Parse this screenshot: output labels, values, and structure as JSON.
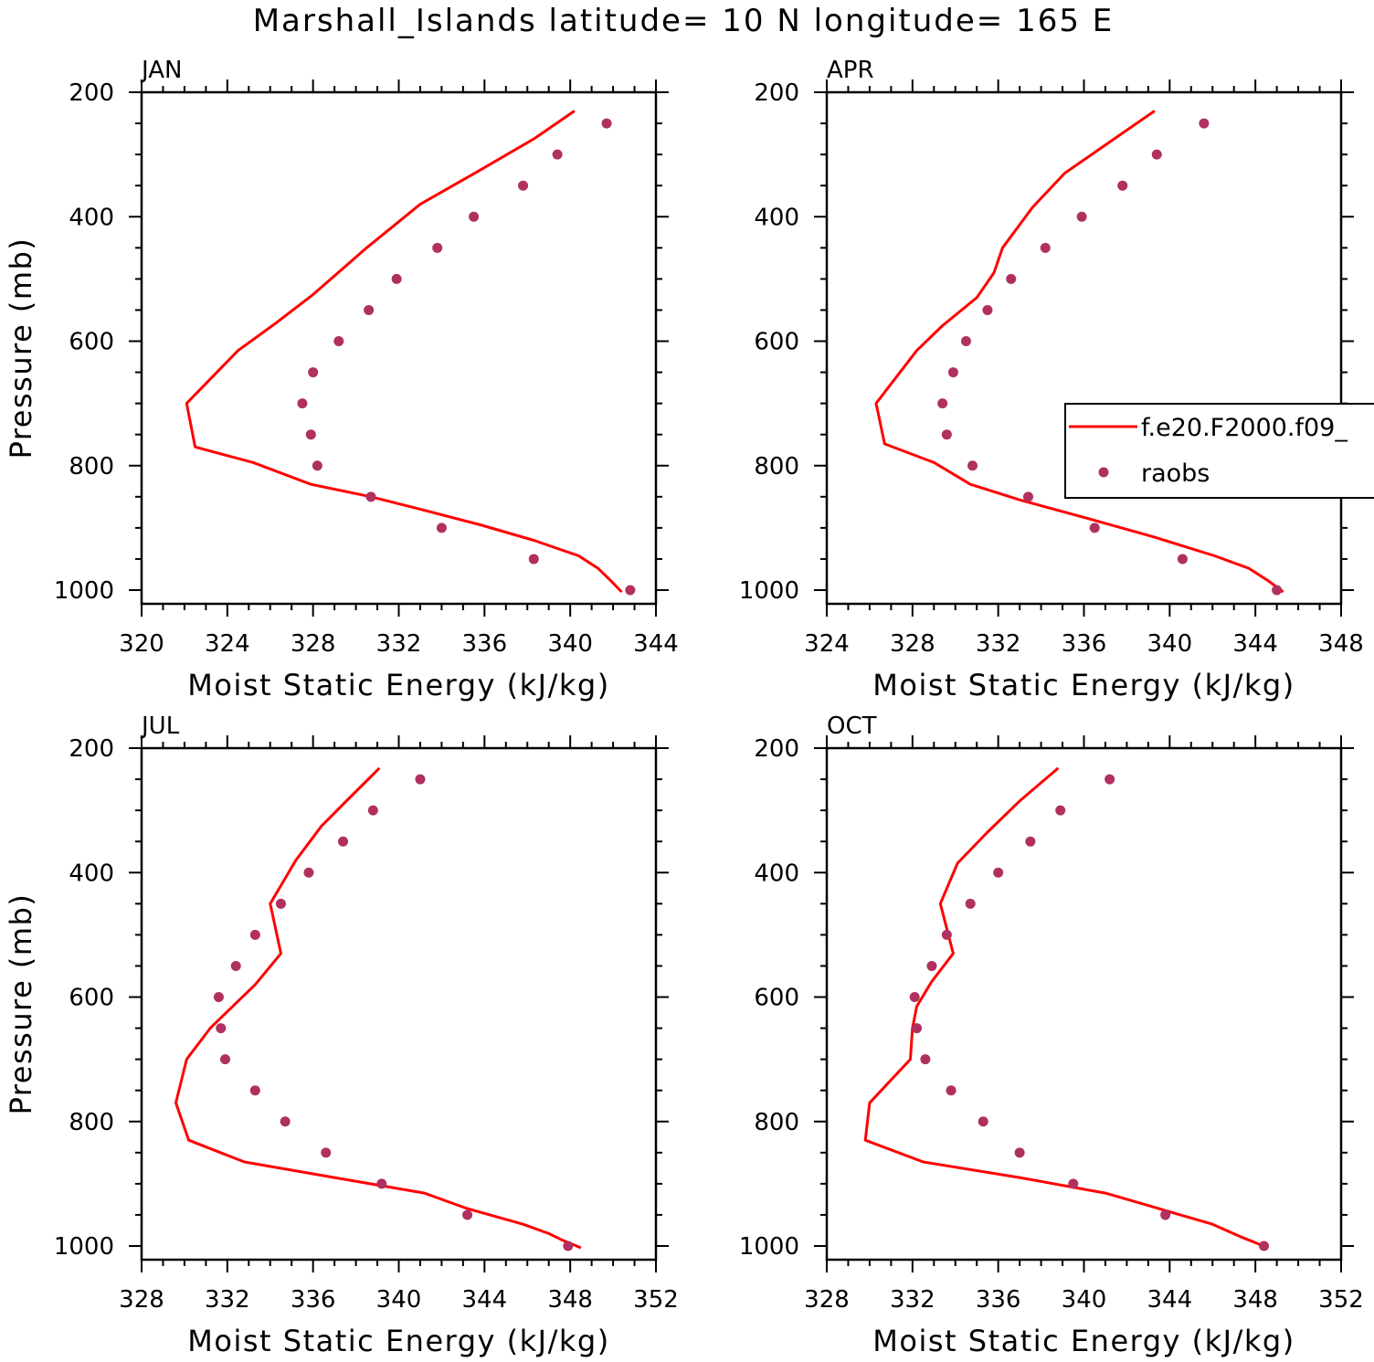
{
  "title": "Marshall_Islands  latitude= 10 N longitude= 165 E",
  "colors": {
    "model": "#ff0000",
    "obs": "#b03060"
  },
  "legend": {
    "model_label": "f.e20.F2000.f09_",
    "obs_label": "raobs"
  },
  "chart_data": [
    {
      "type": "line",
      "panel": "JAN",
      "xlabel": "Moist Static Energy (kJ/kg)",
      "ylabel": "Pressure (mb)",
      "xlim": [
        320,
        344
      ],
      "ylim": [
        1000,
        200
      ],
      "xticks": [
        320,
        324,
        328,
        332,
        336,
        340,
        344
      ],
      "yticks": [
        200,
        400,
        600,
        800,
        1000
      ],
      "series": [
        {
          "name": "f.e20.F2000.f09_",
          "type": "line",
          "x": [
            340.2,
            338.3,
            335.8,
            333.0,
            330.5,
            328.0,
            326.3,
            324.5,
            322.1,
            322.5,
            325.2,
            327.9,
            330.7,
            333.0,
            335.8,
            338.3,
            340.4,
            341.3,
            341.9,
            342.4
          ],
          "y": [
            230,
            275,
            325,
            380,
            450,
            525,
            570,
            615,
            700,
            770,
            795,
            830,
            850,
            870,
            895,
            920,
            945,
            965,
            985,
            1003
          ]
        },
        {
          "name": "raobs",
          "type": "scatter",
          "x": [
            341.7,
            339.4,
            337.8,
            335.5,
            333.8,
            331.9,
            330.6,
            329.2,
            328.0,
            327.5,
            327.9,
            328.2,
            330.7,
            334.0,
            338.3,
            342.8
          ],
          "y": [
            250,
            300,
            350,
            400,
            450,
            500,
            550,
            600,
            650,
            700,
            750,
            800,
            850,
            900,
            950,
            1000
          ]
        }
      ]
    },
    {
      "type": "line",
      "panel": "APR",
      "xlabel": "Moist Static Energy (kJ/kg)",
      "ylabel": "",
      "xlim": [
        324,
        348
      ],
      "ylim": [
        1000,
        200
      ],
      "xticks": [
        324,
        328,
        332,
        336,
        340,
        344,
        348
      ],
      "yticks": [
        200,
        400,
        600,
        800,
        1000
      ],
      "series": [
        {
          "name": "f.e20.F2000.f09_",
          "type": "line",
          "x": [
            339.3,
            337.2,
            335.1,
            333.6,
            332.2,
            331.8,
            331.0,
            329.4,
            328.2,
            326.3,
            326.7,
            329.0,
            330.7,
            333.0,
            336.2,
            339.3,
            342.1,
            343.7,
            344.6,
            345.3
          ],
          "y": [
            230,
            280,
            330,
            385,
            450,
            490,
            530,
            575,
            615,
            700,
            765,
            795,
            830,
            855,
            885,
            915,
            945,
            965,
            985,
            1003
          ]
        },
        {
          "name": "raobs",
          "type": "scatter",
          "x": [
            341.6,
            339.4,
            337.8,
            335.9,
            334.2,
            332.6,
            331.5,
            330.5,
            329.9,
            329.4,
            329.6,
            330.8,
            333.4,
            336.5,
            340.6,
            345.0
          ],
          "y": [
            250,
            300,
            350,
            400,
            450,
            500,
            550,
            600,
            650,
            700,
            750,
            800,
            850,
            900,
            950,
            1000
          ]
        }
      ]
    },
    {
      "type": "line",
      "panel": "JUL",
      "xlabel": "Moist Static Energy (kJ/kg)",
      "ylabel": "Pressure (mb)",
      "xlim": [
        328,
        352
      ],
      "ylim": [
        1000,
        200
      ],
      "xticks": [
        328,
        332,
        336,
        340,
        344,
        348,
        352
      ],
      "yticks": [
        200,
        400,
        600,
        800,
        1000
      ],
      "series": [
        {
          "name": "f.e20.F2000.f09_",
          "type": "line",
          "x": [
            339.1,
            337.7,
            336.4,
            335.2,
            334.0,
            334.5,
            333.3,
            332.1,
            331.2,
            330.1,
            329.6,
            330.2,
            332.8,
            337.0,
            341.2,
            343.2,
            345.8,
            347.0,
            347.6,
            348.5
          ],
          "y": [
            232,
            280,
            325,
            380,
            450,
            530,
            580,
            620,
            650,
            700,
            770,
            830,
            865,
            890,
            915,
            940,
            965,
            980,
            990,
            1003
          ]
        },
        {
          "name": "raobs",
          "type": "scatter",
          "x": [
            341.0,
            338.8,
            337.4,
            335.8,
            334.5,
            333.3,
            332.4,
            331.6,
            331.7,
            331.9,
            333.3,
            334.7,
            336.6,
            339.2,
            343.2,
            347.9
          ],
          "y": [
            250,
            300,
            350,
            400,
            450,
            500,
            550,
            600,
            650,
            700,
            750,
            800,
            850,
            900,
            950,
            1000
          ]
        }
      ]
    },
    {
      "type": "line",
      "panel": "OCT",
      "xlabel": "Moist Static Energy (kJ/kg)",
      "ylabel": "",
      "xlim": [
        328,
        352
      ],
      "ylim": [
        1000,
        200
      ],
      "xticks": [
        328,
        332,
        336,
        340,
        344,
        348,
        352
      ],
      "yticks": [
        200,
        400,
        600,
        800,
        1000
      ],
      "series": [
        {
          "name": "f.e20.F2000.f09_",
          "type": "line",
          "x": [
            338.8,
            337.0,
            335.5,
            334.1,
            333.3,
            333.6,
            333.9,
            332.9,
            332.2,
            332.0,
            331.9,
            330.0,
            329.8,
            332.5,
            337.0,
            341.0,
            343.5,
            346.0,
            347.3,
            348.6
          ],
          "y": [
            232,
            285,
            335,
            385,
            450,
            490,
            530,
            575,
            615,
            650,
            700,
            770,
            830,
            865,
            890,
            915,
            940,
            965,
            985,
            1003
          ]
        },
        {
          "name": "raobs",
          "type": "scatter",
          "x": [
            341.2,
            338.9,
            337.5,
            336.0,
            334.7,
            333.6,
            332.9,
            332.1,
            332.2,
            332.6,
            333.8,
            335.3,
            337.0,
            339.5,
            343.8,
            348.4
          ],
          "y": [
            250,
            300,
            350,
            400,
            450,
            500,
            550,
            600,
            650,
            700,
            750,
            800,
            850,
            900,
            950,
            1000
          ]
        }
      ]
    }
  ]
}
